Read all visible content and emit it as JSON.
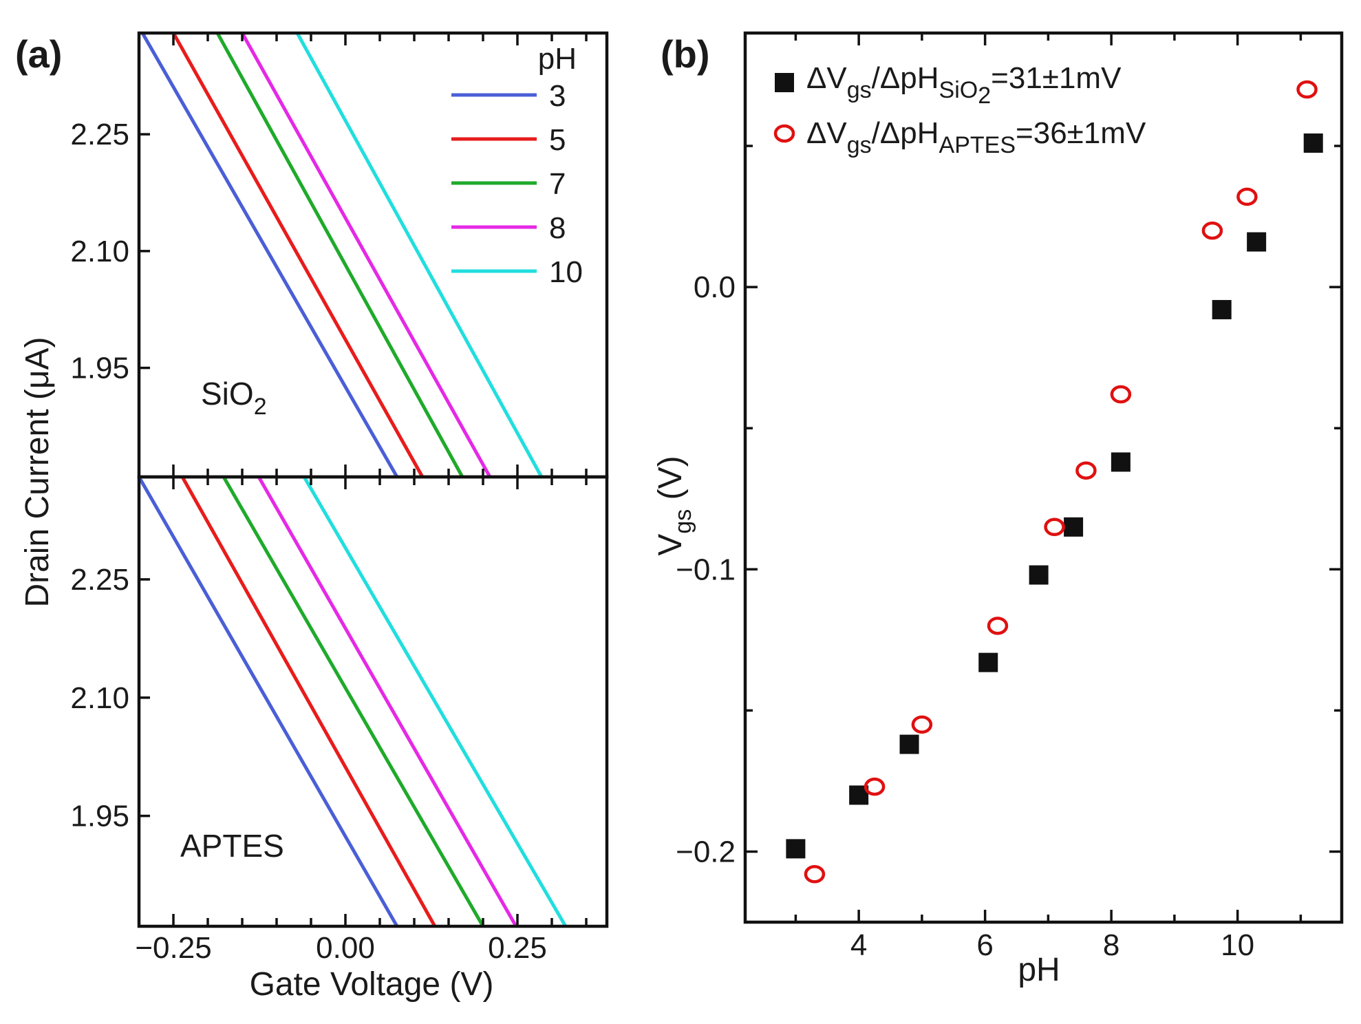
{
  "chart_data": [
    {
      "id": "a",
      "type": "line",
      "panel_label": "(a)",
      "xlabel": "Gate Voltage (V)",
      "ylabel": "Drain Current (μA)",
      "xlim": [
        -0.3,
        0.38
      ],
      "xticks": [
        -0.25,
        0.0,
        0.25
      ],
      "xtick_labels": [
        "−0.25",
        "0.00",
        "0.25"
      ],
      "legend_title": "pH",
      "subplots": [
        {
          "name": "sio2",
          "annotation": "SiO",
          "annotation_sub": "2",
          "ylim": [
            1.81,
            2.38
          ],
          "yticks": [
            1.95,
            2.1,
            2.25
          ],
          "ytick_labels": [
            "1.95",
            "2.10",
            "2.25"
          ],
          "series": [
            {
              "name": "3",
              "color": "#4a5fd6",
              "x": [
                -0.295,
                0.075
              ],
              "y": [
                2.38,
                1.81
              ]
            },
            {
              "name": "5",
              "color": "#e81c1c",
              "x": [
                -0.25,
                0.112
              ],
              "y": [
                2.38,
                1.81
              ]
            },
            {
              "name": "7",
              "color": "#1faa2a",
              "x": [
                -0.186,
                0.17
              ],
              "y": [
                2.38,
                1.81
              ]
            },
            {
              "name": "8",
              "color": "#e529e5",
              "x": [
                -0.15,
                0.21
              ],
              "y": [
                2.38,
                1.81
              ]
            },
            {
              "name": "10",
              "color": "#22dede",
              "x": [
                -0.07,
                0.285
              ],
              "y": [
                2.38,
                1.81
              ]
            }
          ]
        },
        {
          "name": "aptes",
          "annotation": "APTES",
          "annotation_sub": "",
          "ylim": [
            1.81,
            2.38
          ],
          "yticks": [
            1.95,
            2.1,
            2.25
          ],
          "ytick_labels": [
            "1.95",
            "2.10",
            "2.25"
          ],
          "series": [
            {
              "name": "3",
              "color": "#4a5fd6",
              "x": [
                -0.3,
                0.075
              ],
              "y": [
                2.38,
                1.81
              ]
            },
            {
              "name": "5",
              "color": "#e81c1c",
              "x": [
                -0.237,
                0.13
              ],
              "y": [
                2.38,
                1.81
              ]
            },
            {
              "name": "7",
              "color": "#1faa2a",
              "x": [
                -0.177,
                0.2
              ],
              "y": [
                2.38,
                1.81
              ]
            },
            {
              "name": "8",
              "color": "#e529e5",
              "x": [
                -0.126,
                0.248
              ],
              "y": [
                2.38,
                1.81
              ]
            },
            {
              "name": "10",
              "color": "#22dede",
              "x": [
                -0.06,
                0.32
              ],
              "y": [
                2.38,
                1.81
              ]
            }
          ]
        }
      ]
    },
    {
      "id": "b",
      "type": "scatter",
      "panel_label": "(b)",
      "xlabel": "pH",
      "ylabel": "V",
      "ylabel_sub": "gs",
      "ylabel_suffix": " (V)",
      "xlim": [
        2.2,
        11.65
      ],
      "ylim": [
        -0.225,
        0.09
      ],
      "xticks": [
        4,
        6,
        8,
        10
      ],
      "xtick_labels": [
        "4",
        "6",
        "8",
        "10"
      ],
      "yticks": [
        -0.2,
        -0.1,
        0.0
      ],
      "ytick_labels": [
        "−0.2",
        "−0.1",
        "0.0"
      ],
      "series": [
        {
          "name": "SiO2",
          "marker": "square",
          "color": "#111111",
          "legend_lead": "ΔV",
          "legend_sub1": "gs",
          "legend_mid": "/ΔpH",
          "legend_sub2": "SiO",
          "legend_sub3": "2",
          "legend_tail": "=31±1mV",
          "x": [
            3.0,
            4.0,
            4.8,
            6.05,
            6.85,
            7.4,
            8.15,
            9.75,
            10.3,
            11.2
          ],
          "y": [
            -0.199,
            -0.18,
            -0.162,
            -0.133,
            -0.102,
            -0.085,
            -0.062,
            -0.008,
            0.016,
            0.051
          ]
        },
        {
          "name": "APTES",
          "marker": "circle-open",
          "color": "#e01010",
          "legend_lead": "ΔV",
          "legend_sub1": "gs",
          "legend_mid": "/ΔpH",
          "legend_sub2": "APTES",
          "legend_sub3": "",
          "legend_tail": "=36±1mV",
          "x": [
            3.3,
            4.25,
            5.0,
            6.2,
            7.1,
            7.6,
            8.15,
            9.6,
            10.15,
            11.1
          ],
          "y": [
            -0.208,
            -0.177,
            -0.155,
            -0.12,
            -0.085,
            -0.065,
            -0.038,
            0.02,
            0.032,
            0.07
          ]
        }
      ]
    }
  ]
}
